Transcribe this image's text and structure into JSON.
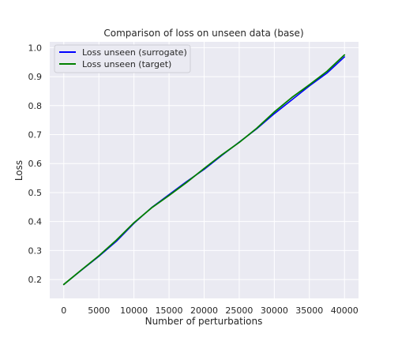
{
  "chart_data": {
    "type": "line",
    "title": "Comparison of loss on unseen data (base)",
    "xlabel": "Number of perturbations",
    "ylabel": "Loss",
    "xlim": [
      -2000,
      42000
    ],
    "ylim": [
      0.135,
      1.02
    ],
    "x_ticks": [
      0,
      5000,
      10000,
      15000,
      20000,
      25000,
      30000,
      35000,
      40000
    ],
    "y_ticks": [
      0.2,
      0.3,
      0.4,
      0.5,
      0.6,
      0.7,
      0.8,
      0.9,
      1.0
    ],
    "x_tick_labels": [
      "0",
      "5000",
      "10000",
      "15000",
      "20000",
      "25000",
      "30000",
      "35000",
      "40000"
    ],
    "y_tick_labels": [
      "0.2",
      "0.3",
      "0.4",
      "0.5",
      "0.6",
      "0.7",
      "0.8",
      "0.9",
      "1.0"
    ],
    "grid": true,
    "legend_position": "top-left",
    "background_color": "#eaeaf2",
    "x": [
      0,
      2500,
      5000,
      7500,
      10000,
      12500,
      15000,
      17500,
      20000,
      22500,
      25000,
      27500,
      30000,
      32500,
      35000,
      37500,
      40000
    ],
    "series": [
      {
        "name": "Loss unseen (surrogate)",
        "color": "#0000ff",
        "values": [
          0.183,
          0.232,
          0.28,
          0.332,
          0.394,
          0.448,
          0.493,
          0.538,
          0.58,
          0.628,
          0.674,
          0.72,
          0.772,
          0.82,
          0.868,
          0.912,
          0.968
        ]
      },
      {
        "name": "Loss unseen (target)",
        "color": "#008000",
        "values": [
          0.183,
          0.233,
          0.282,
          0.336,
          0.396,
          0.447,
          0.49,
          0.535,
          0.583,
          0.63,
          0.673,
          0.722,
          0.778,
          0.828,
          0.872,
          0.918,
          0.975
        ]
      }
    ]
  }
}
